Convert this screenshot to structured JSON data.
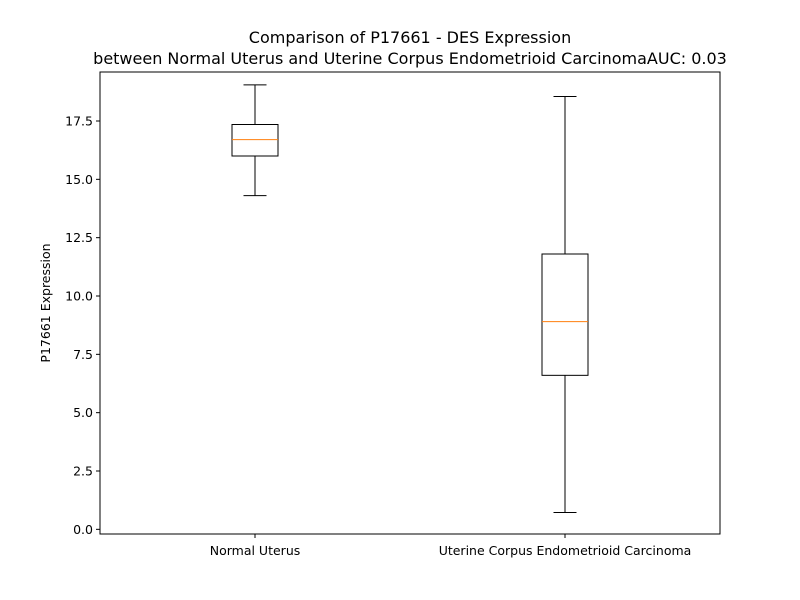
{
  "chart_data": {
    "type": "box",
    "title_line1": "Comparison of P17661 - DES Expression",
    "title_line2": "between Normal Uterus and Uterine Corpus Endometrioid CarcinomaAUC: 0.03",
    "xlabel": "",
    "ylabel": "P17661 Expression",
    "ylim": [
      -0.2,
      19.6
    ],
    "yticks": [
      0.0,
      2.5,
      5.0,
      7.5,
      10.0,
      12.5,
      15.0,
      17.5
    ],
    "ytick_labels": [
      "0.0",
      "2.5",
      "5.0",
      "7.5",
      "10.0",
      "12.5",
      "15.0",
      "17.5"
    ],
    "categories": [
      "Normal Uterus",
      "Uterine Corpus Endometrioid Carcinoma"
    ],
    "boxes": [
      {
        "whisker_low": 14.3,
        "q1": 16.0,
        "median": 16.7,
        "q3": 17.35,
        "whisker_high": 19.05
      },
      {
        "whisker_low": 0.72,
        "q1": 6.6,
        "median": 8.9,
        "q3": 11.8,
        "whisker_high": 18.55
      }
    ],
    "colors": {
      "box": "#000000",
      "median": "#ff7f0e"
    }
  }
}
